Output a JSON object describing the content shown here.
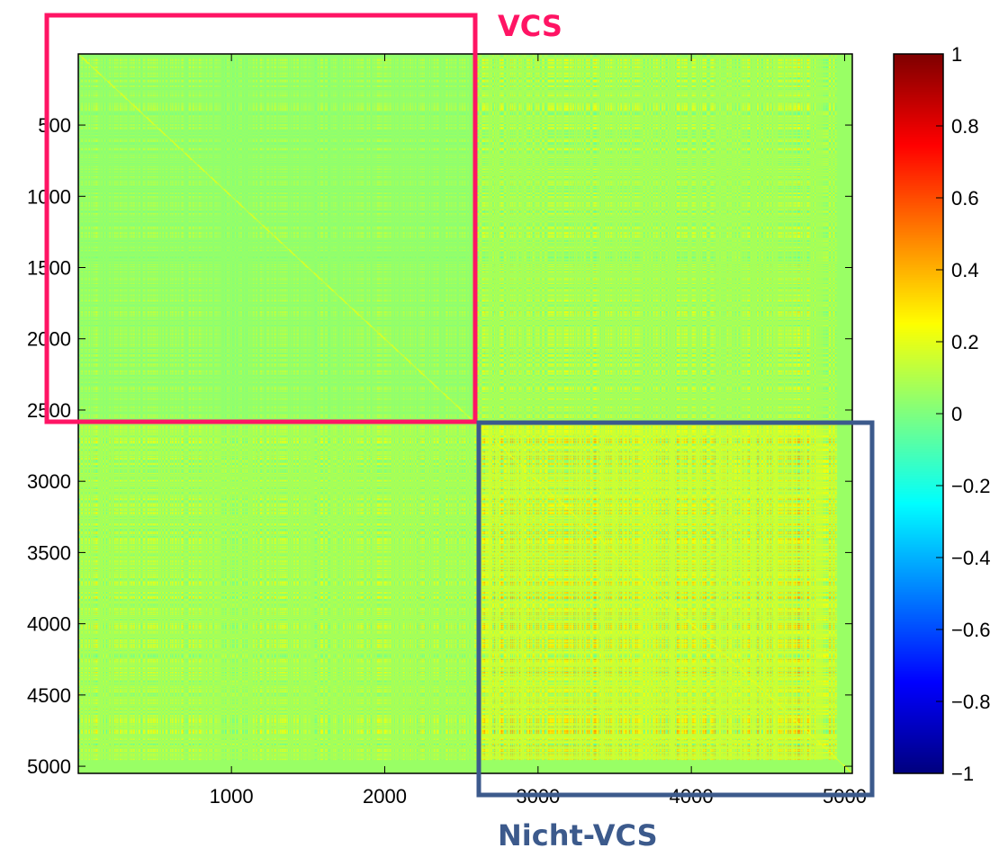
{
  "chart_data": {
    "type": "heatmap",
    "title": "",
    "xlabel": "",
    "ylabel": "",
    "xlim": [
      1,
      5050
    ],
    "ylim": [
      1,
      5050
    ],
    "x_ticks": [
      1000,
      2000,
      3000,
      4000,
      5000
    ],
    "y_ticks": [
      500,
      1000,
      1500,
      2000,
      2500,
      3000,
      3500,
      4000,
      4500,
      5000
    ],
    "x_tick_labels": [
      "1000",
      "2000",
      "3000",
      "4000",
      "5000"
    ],
    "y_tick_labels": [
      "500",
      "1000",
      "1500",
      "2000",
      "2500",
      "3000",
      "3500",
      "4000",
      "4500",
      "5000"
    ],
    "colorbar": {
      "range": [
        -1,
        1
      ],
      "ticks": [
        1,
        0.8,
        0.6,
        0.4,
        0.2,
        0,
        -0.2,
        -0.4,
        -0.6,
        -0.8,
        -1
      ],
      "tick_labels": [
        "1",
        "0.8",
        "0.6",
        "0.4",
        "0.2",
        "0",
        "−0.2",
        "−0.4",
        "−0.6",
        "−0.8",
        "−1"
      ],
      "colormap": "jet"
    },
    "blocks": [
      {
        "label": "VCS",
        "range": [
          1,
          2600
        ],
        "mean_correlation": 0.05
      },
      {
        "label": "Nicht-VCS",
        "range": [
          2600,
          5000
        ],
        "mean_correlation": 0.15
      }
    ],
    "diagonal_value": 1,
    "annotations": [
      {
        "text": "VCS",
        "color": "#ff1464",
        "region": "x: 0-2600, y: 0-2600"
      },
      {
        "text": "Nicht-VCS",
        "color": "#3c5a8c",
        "region": "x: 2600-5050, y: 2600-5050"
      }
    ]
  }
}
